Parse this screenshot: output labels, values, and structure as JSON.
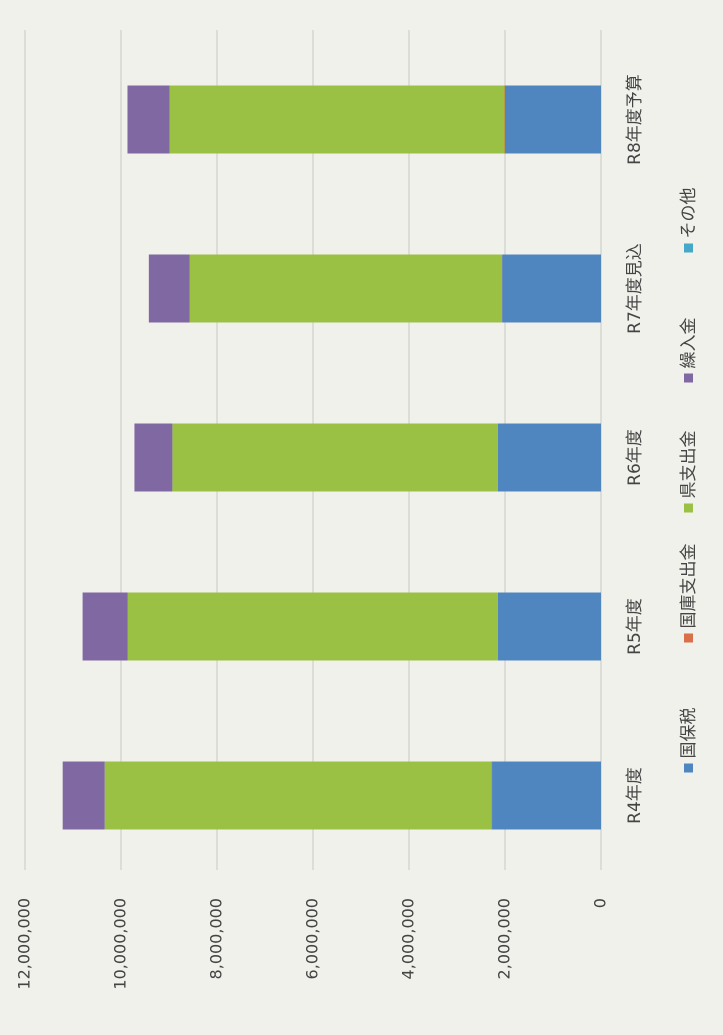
{
  "chart_data": {
    "type": "stacked_bar",
    "categories": [
      "R4年度",
      "R5年度",
      "R6年度",
      "R7年度見込",
      "R8年度予算"
    ],
    "series": [
      {
        "name": "国保税",
        "color": "#4f86c0",
        "values": [
          2270000,
          2150000,
          2150000,
          2060000,
          2000000
        ]
      },
      {
        "name": "国庫支出金",
        "color": "#d8704a",
        "values": [
          10000,
          10000,
          10000,
          10000,
          10000
        ]
      },
      {
        "name": "県支出金",
        "color": "#9ac144",
        "values": [
          8060000,
          7700000,
          6770000,
          6500000,
          6980000
        ]
      },
      {
        "name": "繰入金",
        "color": "#8068a2",
        "values": [
          875000,
          940000,
          790000,
          850000,
          875000
        ]
      },
      {
        "name": "その他",
        "color": "#45a8c8",
        "values": [
          0,
          0,
          0,
          0,
          0
        ]
      }
    ],
    "ylim": [
      0,
      12000000
    ],
    "yticks": [
      {
        "value": 0,
        "label": "0"
      },
      {
        "value": 2000000,
        "label": "2,000,000"
      },
      {
        "value": 4000000,
        "label": "4,000,000"
      },
      {
        "value": 6000000,
        "label": "6,000,000"
      },
      {
        "value": 8000000,
        "label": "8,000,000"
      },
      {
        "value": 10000000,
        "label": "10,000,000"
      },
      {
        "value": 12000000,
        "label": "12,000,000"
      }
    ],
    "grid": true,
    "legend": "bottom"
  }
}
